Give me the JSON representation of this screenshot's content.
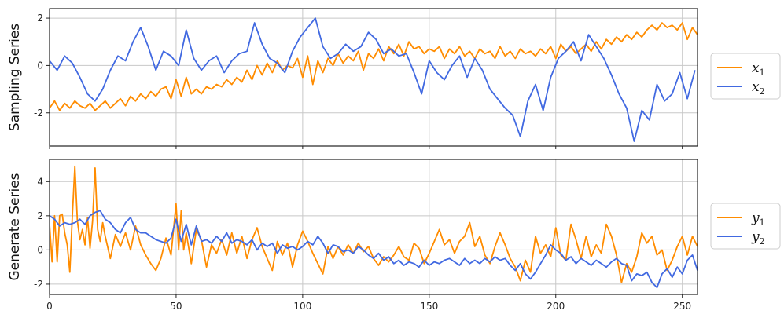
{
  "chart_data": [
    {
      "type": "line",
      "ylabel": "Sampling Series",
      "xlim": [
        0,
        256
      ],
      "ylim": [
        -3.4,
        2.4
      ],
      "xticks": [
        0,
        50,
        100,
        150,
        200,
        250
      ],
      "yticks": [
        -2,
        0,
        2
      ],
      "grid": true,
      "legend_placement": "right",
      "series": [
        {
          "name": "x₁",
          "legend_base": "x",
          "legend_sub": "1",
          "color": "#ff8c00",
          "x": [
            0,
            2,
            4,
            6,
            8,
            10,
            12,
            14,
            16,
            18,
            20,
            22,
            24,
            26,
            28,
            30,
            32,
            34,
            36,
            38,
            40,
            42,
            44,
            46,
            48,
            50,
            52,
            54,
            56,
            58,
            60,
            62,
            64,
            66,
            68,
            70,
            72,
            74,
            76,
            78,
            80,
            82,
            84,
            86,
            88,
            90,
            92,
            94,
            96,
            98,
            100,
            102,
            104,
            106,
            108,
            110,
            112,
            114,
            116,
            118,
            120,
            122,
            124,
            126,
            128,
            130,
            132,
            134,
            136,
            138,
            140,
            142,
            144,
            146,
            148,
            150,
            152,
            154,
            156,
            158,
            160,
            162,
            164,
            166,
            168,
            170,
            172,
            174,
            176,
            178,
            180,
            182,
            184,
            186,
            188,
            190,
            192,
            194,
            196,
            198,
            200,
            202,
            204,
            206,
            208,
            210,
            212,
            214,
            216,
            218,
            220,
            222,
            224,
            226,
            228,
            230,
            232,
            234,
            236,
            238,
            240,
            242,
            244,
            246,
            248,
            250,
            252,
            254,
            256
          ],
          "y": [
            -1.8,
            -1.5,
            -1.9,
            -1.6,
            -1.8,
            -1.5,
            -1.7,
            -1.8,
            -1.6,
            -1.9,
            -1.7,
            -1.5,
            -1.8,
            -1.6,
            -1.4,
            -1.7,
            -1.3,
            -1.5,
            -1.2,
            -1.4,
            -1.1,
            -1.3,
            -1.0,
            -0.9,
            -1.4,
            -0.6,
            -1.3,
            -0.5,
            -1.2,
            -1.0,
            -1.2,
            -0.9,
            -1.0,
            -0.8,
            -0.9,
            -0.6,
            -0.8,
            -0.5,
            -0.7,
            -0.2,
            -0.6,
            0.0,
            -0.4,
            0.1,
            -0.3,
            0.2,
            -0.2,
            0.0,
            -0.1,
            0.3,
            -0.5,
            0.4,
            -0.8,
            0.2,
            -0.3,
            0.3,
            0.0,
            0.5,
            0.1,
            0.4,
            0.2,
            0.6,
            -0.2,
            0.5,
            0.3,
            0.7,
            0.2,
            0.8,
            0.5,
            0.9,
            0.4,
            1.0,
            0.7,
            0.8,
            0.5,
            0.7,
            0.6,
            0.8,
            0.3,
            0.7,
            0.5,
            0.8,
            0.4,
            0.6,
            0.3,
            0.7,
            0.5,
            0.6,
            0.3,
            0.8,
            0.4,
            0.6,
            0.3,
            0.7,
            0.5,
            0.6,
            0.4,
            0.7,
            0.5,
            0.8,
            0.3,
            0.9,
            0.6,
            0.8,
            0.5,
            0.7,
            0.9,
            0.6,
            1.0,
            0.7,
            1.1,
            0.9,
            1.2,
            1.0,
            1.3,
            1.1,
            1.4,
            1.2,
            1.5,
            1.7,
            1.5,
            1.8,
            1.6,
            1.7,
            1.5,
            1.8,
            1.1,
            1.6,
            1.3
          ]
        },
        {
          "name": "x₂",
          "legend_base": "x",
          "legend_sub": "2",
          "color": "#4169e1",
          "x": [
            0,
            3,
            6,
            9,
            12,
            15,
            18,
            21,
            24,
            27,
            30,
            33,
            36,
            39,
            42,
            45,
            48,
            51,
            54,
            57,
            60,
            63,
            66,
            69,
            72,
            75,
            78,
            81,
            84,
            87,
            90,
            93,
            96,
            99,
            102,
            105,
            108,
            111,
            114,
            117,
            120,
            123,
            126,
            129,
            132,
            135,
            138,
            141,
            144,
            147,
            150,
            153,
            156,
            159,
            162,
            165,
            168,
            171,
            174,
            177,
            180,
            183,
            186,
            189,
            192,
            195,
            198,
            201,
            204,
            207,
            210,
            213,
            216,
            219,
            222,
            225,
            228,
            231,
            234,
            237,
            240,
            243,
            246,
            249,
            252,
            255
          ],
          "y": [
            0.2,
            -0.2,
            0.4,
            0.1,
            -0.5,
            -1.2,
            -1.5,
            -1.0,
            -0.2,
            0.4,
            0.2,
            1.0,
            1.6,
            0.8,
            -0.2,
            0.6,
            0.4,
            0.0,
            1.5,
            0.3,
            -0.2,
            0.2,
            0.4,
            -0.3,
            0.2,
            0.5,
            0.6,
            1.8,
            0.9,
            0.3,
            0.1,
            -0.3,
            0.6,
            1.2,
            1.6,
            2.0,
            0.8,
            0.3,
            0.5,
            0.9,
            0.6,
            0.8,
            1.4,
            1.1,
            0.5,
            0.7,
            0.4,
            0.5,
            -0.3,
            -1.2,
            0.2,
            -0.3,
            -0.6,
            0.0,
            0.4,
            -0.5,
            0.3,
            -0.2,
            -1.0,
            -1.4,
            -1.8,
            -2.1,
            -3.0,
            -1.5,
            -0.8,
            -1.9,
            -0.5,
            0.3,
            0.6,
            1.0,
            0.2,
            1.3,
            0.8,
            0.3,
            -0.4,
            -1.2,
            -1.8,
            -3.2,
            -1.9,
            -2.3,
            -0.8,
            -1.5,
            -1.2,
            -0.3,
            -1.4,
            -0.2
          ]
        }
      ]
    },
    {
      "type": "line",
      "ylabel": "Generate Series",
      "xlim": [
        0,
        256
      ],
      "ylim": [
        -2.6,
        5.3
      ],
      "xticks": [
        0,
        50,
        100,
        150,
        200,
        250
      ],
      "xticklabels": [
        "0",
        "50",
        "100",
        "150",
        "200",
        "250"
      ],
      "yticks": [
        -2,
        0,
        2,
        4
      ],
      "grid": true,
      "legend_placement": "right",
      "series": [
        {
          "name": "y₁",
          "legend_base": "y",
          "legend_sub": "1",
          "color": "#ff8c00",
          "x": [
            0,
            1,
            2,
            3,
            4,
            5,
            6,
            7,
            8,
            9,
            10,
            11,
            12,
            13,
            14,
            15,
            16,
            17,
            18,
            19,
            20,
            21,
            22,
            24,
            26,
            28,
            30,
            32,
            34,
            36,
            38,
            40,
            42,
            44,
            46,
            48,
            50,
            51,
            52,
            53,
            54,
            56,
            58,
            60,
            62,
            64,
            66,
            68,
            70,
            72,
            74,
            76,
            78,
            80,
            82,
            84,
            86,
            88,
            90,
            92,
            94,
            96,
            98,
            100,
            102,
            104,
            106,
            108,
            110,
            112,
            114,
            116,
            118,
            120,
            122,
            124,
            126,
            128,
            130,
            132,
            134,
            136,
            138,
            140,
            142,
            144,
            146,
            148,
            150,
            152,
            154,
            156,
            158,
            160,
            162,
            164,
            166,
            168,
            170,
            172,
            174,
            176,
            178,
            180,
            182,
            184,
            186,
            188,
            190,
            192,
            194,
            196,
            198,
            200,
            202,
            204,
            206,
            208,
            210,
            212,
            214,
            216,
            218,
            220,
            222,
            224,
            226,
            228,
            230,
            232,
            234,
            236,
            238,
            240,
            242,
            244,
            246,
            248,
            250,
            252,
            254,
            256
          ],
          "y": [
            1.5,
            -0.7,
            2.0,
            -0.7,
            2.0,
            2.1,
            1.0,
            0.3,
            -1.3,
            2.0,
            4.9,
            1.7,
            0.6,
            1.2,
            0.3,
            1.9,
            0.1,
            1.7,
            4.8,
            1.2,
            0.5,
            1.6,
            0.8,
            -0.5,
            0.9,
            0.2,
            1.0,
            0.0,
            1.4,
            0.3,
            -0.3,
            -0.8,
            -1.2,
            -0.5,
            0.7,
            -0.3,
            2.7,
            0.0,
            2.3,
            0.0,
            1.0,
            -0.8,
            1.2,
            0.6,
            -1.0,
            0.3,
            -0.2,
            0.6,
            -0.3,
            1.0,
            -0.2,
            0.8,
            -0.5,
            0.6,
            1.3,
            0.2,
            -0.5,
            -1.2,
            0.5,
            -0.3,
            0.4,
            -1.0,
            0.3,
            1.1,
            0.5,
            -0.2,
            -0.8,
            -1.4,
            0.2,
            -0.5,
            0.2,
            -0.3,
            0.3,
            -0.2,
            0.4,
            -0.1,
            0.2,
            -0.5,
            -0.9,
            -0.4,
            -0.7,
            -0.3,
            0.2,
            -0.4,
            -0.6,
            0.4,
            0.1,
            -0.8,
            -0.2,
            0.5,
            1.2,
            0.3,
            0.6,
            -0.2,
            0.5,
            0.8,
            1.6,
            0.2,
            0.8,
            -0.3,
            -0.8,
            0.2,
            1.0,
            0.3,
            -0.5,
            -1.0,
            -1.8,
            -0.6,
            -1.3,
            0.8,
            -0.2,
            0.3,
            -0.4,
            1.3,
            -0.3,
            -0.6,
            1.5,
            0.6,
            -0.5,
            0.8,
            -0.4,
            0.3,
            -0.2,
            1.5,
            0.8,
            -0.3,
            -1.9,
            -0.8,
            -1.3,
            -0.4,
            1.0,
            0.4,
            0.8,
            -0.3,
            0.0,
            -1.2,
            -0.6,
            0.2,
            0.8,
            -0.3,
            0.8,
            0.2
          ]
        },
        {
          "name": "y₂",
          "legend_base": "y",
          "legend_sub": "2",
          "color": "#4169e1",
          "x": [
            0,
            2,
            4,
            6,
            8,
            10,
            12,
            14,
            16,
            18,
            20,
            22,
            24,
            26,
            28,
            30,
            32,
            34,
            36,
            38,
            40,
            42,
            44,
            46,
            48,
            50,
            52,
            54,
            56,
            58,
            60,
            62,
            64,
            66,
            68,
            70,
            72,
            74,
            76,
            78,
            80,
            82,
            84,
            86,
            88,
            90,
            92,
            94,
            96,
            98,
            100,
            102,
            104,
            106,
            108,
            110,
            112,
            114,
            116,
            118,
            120,
            122,
            124,
            126,
            128,
            130,
            132,
            134,
            136,
            138,
            140,
            142,
            144,
            146,
            148,
            150,
            152,
            154,
            156,
            158,
            160,
            162,
            164,
            166,
            168,
            170,
            172,
            174,
            176,
            178,
            180,
            182,
            184,
            186,
            188,
            190,
            192,
            194,
            196,
            198,
            200,
            202,
            204,
            206,
            208,
            210,
            212,
            214,
            216,
            218,
            220,
            222,
            224,
            226,
            228,
            230,
            232,
            234,
            236,
            238,
            240,
            242,
            244,
            246,
            248,
            250,
            252,
            254,
            256
          ],
          "y": [
            2.0,
            1.8,
            1.4,
            1.6,
            1.5,
            1.6,
            1.8,
            1.5,
            2.0,
            2.2,
            2.3,
            1.8,
            1.6,
            1.2,
            1.0,
            1.6,
            1.9,
            1.2,
            1.0,
            1.0,
            0.8,
            0.6,
            0.5,
            0.4,
            0.7,
            1.8,
            0.5,
            1.5,
            0.3,
            1.4,
            0.5,
            0.6,
            0.4,
            0.8,
            0.5,
            1.0,
            0.4,
            0.6,
            0.5,
            0.3,
            0.6,
            0.0,
            0.4,
            0.2,
            0.4,
            -0.2,
            0.3,
            0.1,
            0.2,
            0.0,
            0.2,
            0.5,
            0.3,
            0.8,
            0.4,
            -0.2,
            0.3,
            0.2,
            -0.1,
            0.0,
            -0.2,
            0.2,
            0.0,
            -0.3,
            -0.5,
            -0.2,
            -0.6,
            -0.4,
            -0.8,
            -0.6,
            -0.9,
            -0.7,
            -0.8,
            -1.0,
            -0.6,
            -0.9,
            -0.7,
            -0.8,
            -0.6,
            -0.5,
            -0.7,
            -0.9,
            -0.5,
            -0.8,
            -0.6,
            -0.8,
            -0.5,
            -0.7,
            -0.4,
            -0.6,
            -0.5,
            -0.9,
            -1.2,
            -0.8,
            -1.4,
            -1.7,
            -1.3,
            -0.8,
            -0.3,
            0.3,
            0.0,
            -0.2,
            -0.6,
            -0.4,
            -0.8,
            -0.5,
            -0.7,
            -0.9,
            -0.6,
            -0.8,
            -1.0,
            -0.7,
            -0.5,
            -0.8,
            -0.9,
            -1.8,
            -1.4,
            -1.5,
            -1.3,
            -1.9,
            -2.2,
            -1.4,
            -1.1,
            -1.6,
            -1.0,
            -1.4,
            -0.6,
            -0.3,
            -1.2
          ]
        }
      ]
    }
  ]
}
